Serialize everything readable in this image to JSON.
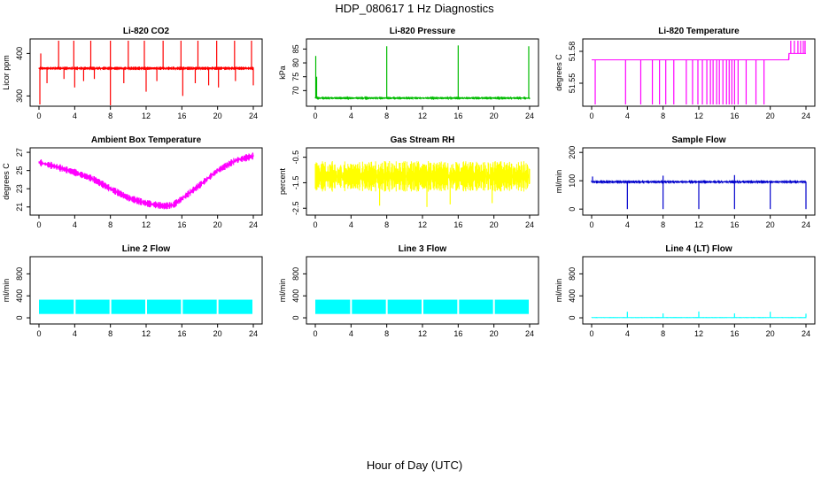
{
  "figure": {
    "title": "HDP_080617  1 Hz Diagnostics",
    "xlabel": "Hour of Day (UTC)"
  },
  "chart_data": [
    {
      "type": "line",
      "title": "Li-820 CO2",
      "ylabel": "Licor ppm",
      "color": "#ff0000",
      "xlim": [
        0,
        24
      ],
      "ylim": [
        280,
        430
      ],
      "yticks": [
        300,
        400
      ],
      "xticks": [
        0,
        4,
        8,
        12,
        16,
        20,
        24
      ],
      "series": [
        {
          "name": "CO2",
          "baseline": 365,
          "noise": 4,
          "spikes_up": [
            [
              0.2,
              400
            ],
            [
              2.2,
              430
            ],
            [
              3.9,
              430
            ],
            [
              5.8,
              430
            ],
            [
              8.0,
              430
            ],
            [
              10.0,
              430
            ],
            [
              11.8,
              430
            ],
            [
              13.9,
              430
            ],
            [
              15.9,
              430
            ],
            [
              17.8,
              430
            ],
            [
              19.9,
              430
            ],
            [
              21.9,
              430
            ],
            [
              23.8,
              430
            ]
          ],
          "spikes_down": [
            [
              0.1,
              280
            ],
            [
              0.9,
              330
            ],
            [
              2.8,
              340
            ],
            [
              4.0,
              320
            ],
            [
              5.0,
              335
            ],
            [
              6.2,
              340
            ],
            [
              8.0,
              278
            ],
            [
              9.5,
              330
            ],
            [
              12.0,
              310
            ],
            [
              13.2,
              335
            ],
            [
              16.1,
              300
            ],
            [
              17.5,
              330
            ],
            [
              19.0,
              325
            ],
            [
              20.1,
              320
            ],
            [
              22.0,
              335
            ],
            [
              24.0,
              325
            ]
          ]
        }
      ]
    },
    {
      "type": "line",
      "title": "Li-820 Pressure",
      "ylabel": "kPa",
      "color": "#00bb00",
      "xlim": [
        0,
        24
      ],
      "ylim": [
        65,
        88
      ],
      "yticks": [
        70,
        75,
        80,
        85
      ],
      "xticks": [
        0,
        4,
        8,
        12,
        16,
        20,
        24
      ],
      "series": [
        {
          "name": "Pressure",
          "baseline": 67.3,
          "noise": 0.15,
          "spikes_up": [
            [
              0.05,
              82.5
            ],
            [
              0.15,
              75
            ],
            [
              8.0,
              86
            ],
            [
              16.0,
              86.3
            ],
            [
              23.9,
              86
            ]
          ],
          "spikes_down": []
        }
      ]
    },
    {
      "type": "line",
      "title": "Li-820 Temperature",
      "ylabel": "degrees C",
      "color": "#ff00ff",
      "xlim": [
        0,
        24
      ],
      "ylim": [
        51.53,
        51.59
      ],
      "yticks": [
        51.55,
        51.58
      ],
      "xticks": [
        0,
        4,
        8,
        12,
        16,
        20,
        24
      ],
      "series": [
        {
          "name": "Temperature",
          "baseline": 51.572,
          "step_at": 22.1,
          "step_level": 51.578,
          "noise": 0,
          "spikes_up": [
            [
              22.3,
              51.59
            ],
            [
              22.7,
              51.59
            ],
            [
              23.1,
              51.59
            ],
            [
              23.4,
              51.59
            ],
            [
              23.7,
              51.59
            ],
            [
              23.9,
              51.59
            ]
          ],
          "spikes_down": [
            [
              0.4,
              51.53
            ],
            [
              3.8,
              51.53
            ],
            [
              5.5,
              51.53
            ],
            [
              6.8,
              51.53
            ],
            [
              7.6,
              51.53
            ],
            [
              8.3,
              51.53
            ],
            [
              9.2,
              51.53
            ],
            [
              10.6,
              51.53
            ],
            [
              11.3,
              51.53
            ],
            [
              11.9,
              51.53
            ],
            [
              12.4,
              51.53
            ],
            [
              12.9,
              51.53
            ],
            [
              13.3,
              51.53
            ],
            [
              13.6,
              51.53
            ],
            [
              14.0,
              51.53
            ],
            [
              14.3,
              51.53
            ],
            [
              14.7,
              51.53
            ],
            [
              15.1,
              51.53
            ],
            [
              15.4,
              51.53
            ],
            [
              15.7,
              51.53
            ],
            [
              16.0,
              51.53
            ],
            [
              16.4,
              51.53
            ],
            [
              17.3,
              51.53
            ],
            [
              18.4,
              51.53
            ],
            [
              19.3,
              51.53
            ]
          ]
        }
      ]
    },
    {
      "type": "line",
      "title": "Ambient Box Temperature",
      "ylabel": "degrees C",
      "color": "#ff00ff",
      "xlim": [
        0,
        24
      ],
      "ylim": [
        20.3,
        27.3
      ],
      "yticks": [
        21,
        23,
        25,
        27
      ],
      "xticks": [
        0,
        4,
        8,
        12,
        16,
        20,
        24
      ],
      "series": [
        {
          "name": "Box temperature",
          "noise": 0.4,
          "spikes_up": [],
          "spikes_down": [],
          "curve": [
            [
              0,
              25.9
            ],
            [
              2,
              25.4
            ],
            [
              4,
              24.8
            ],
            [
              6,
              24.1
            ],
            [
              8,
              23.0
            ],
            [
              10,
              22.0
            ],
            [
              12,
              21.4
            ],
            [
              14,
              21.1
            ],
            [
              15,
              21.2
            ],
            [
              16,
              21.9
            ],
            [
              18,
              23.4
            ],
            [
              20,
              25.0
            ],
            [
              22,
              26.1
            ],
            [
              24,
              26.6
            ]
          ]
        }
      ]
    },
    {
      "type": "line",
      "title": "Gas Stream RH",
      "ylabel": "percent",
      "color": "#ffff00",
      "xlim": [
        0,
        24
      ],
      "ylim": [
        -2.7,
        -0.2
      ],
      "yticks": [
        -2.5,
        -1.5,
        -0.5
      ],
      "xticks": [
        0,
        4,
        8,
        12,
        16,
        20,
        24
      ],
      "series": [
        {
          "name": "RH",
          "baseline": -1.25,
          "noise": 0.6,
          "spikes_up": [],
          "spikes_down": [
            [
              7.2,
              -2.4
            ],
            [
              12.5,
              -2.45
            ],
            [
              15.1,
              -2.35
            ],
            [
              19.8,
              -2.3
            ]
          ]
        }
      ]
    },
    {
      "type": "line",
      "title": "Sample Flow",
      "ylabel": "ml/min",
      "color": "#0000cc",
      "xlim": [
        0,
        24
      ],
      "ylim": [
        -15,
        210
      ],
      "yticks": [
        0,
        100,
        200
      ],
      "xticks": [
        0,
        4,
        8,
        12,
        16,
        20,
        24
      ],
      "series": [
        {
          "name": "Sample flow",
          "baseline": 96,
          "noise": 2,
          "spikes_up": [
            [
              0.1,
              115
            ],
            [
              8.0,
              118
            ],
            [
              16.0,
              120
            ]
          ],
          "spikes_down": [
            [
              4.0,
              0
            ],
            [
              8.0,
              0
            ],
            [
              12.0,
              0
            ],
            [
              16.0,
              0
            ],
            [
              20.0,
              0
            ],
            [
              24.0,
              0
            ]
          ]
        }
      ]
    },
    {
      "type": "area",
      "title": "Line 2 Flow",
      "ylabel": "ml/min",
      "color": "#00ffff",
      "xlim": [
        0,
        24
      ],
      "ylim": [
        -80,
        1080
      ],
      "yticks": [
        0,
        400,
        800
      ],
      "xticks": [
        0,
        4,
        8,
        12,
        16,
        20,
        24
      ],
      "series": [
        {
          "name": "Line 2 flow",
          "band": [
            70,
            330
          ],
          "gaps": [
            4.0,
            8.0,
            12.0,
            16.0,
            20.0,
            24.0
          ],
          "spikes_up": [],
          "spikes_down": []
        }
      ]
    },
    {
      "type": "area",
      "title": "Line 3 Flow",
      "ylabel": "ml/min",
      "color": "#00ffff",
      "xlim": [
        0,
        24
      ],
      "ylim": [
        -80,
        1080
      ],
      "yticks": [
        0,
        400,
        800
      ],
      "xticks": [
        0,
        4,
        8,
        12,
        16,
        20,
        24
      ],
      "series": [
        {
          "name": "Line 3 flow",
          "band": [
            70,
            330
          ],
          "gaps": [
            4.0,
            8.0,
            12.0,
            16.0,
            20.0,
            24.0
          ],
          "spikes_up": [],
          "spikes_down": []
        }
      ]
    },
    {
      "type": "line",
      "title": "Line 4 (LT) Flow",
      "ylabel": "ml/min",
      "color": "#00ffff",
      "xlim": [
        0,
        24
      ],
      "ylim": [
        -80,
        1080
      ],
      "yticks": [
        0,
        400,
        800
      ],
      "xticks": [
        0,
        4,
        8,
        12,
        16,
        20,
        24
      ],
      "series": [
        {
          "name": "Line 4 flow",
          "baseline": 5,
          "noise": 1,
          "spikes_up": [
            [
              4.0,
              110
            ],
            [
              8.0,
              80
            ],
            [
              12.0,
              115
            ],
            [
              16.0,
              80
            ],
            [
              20.0,
              110
            ],
            [
              24.0,
              75
            ]
          ],
          "spikes_down": []
        }
      ]
    }
  ]
}
